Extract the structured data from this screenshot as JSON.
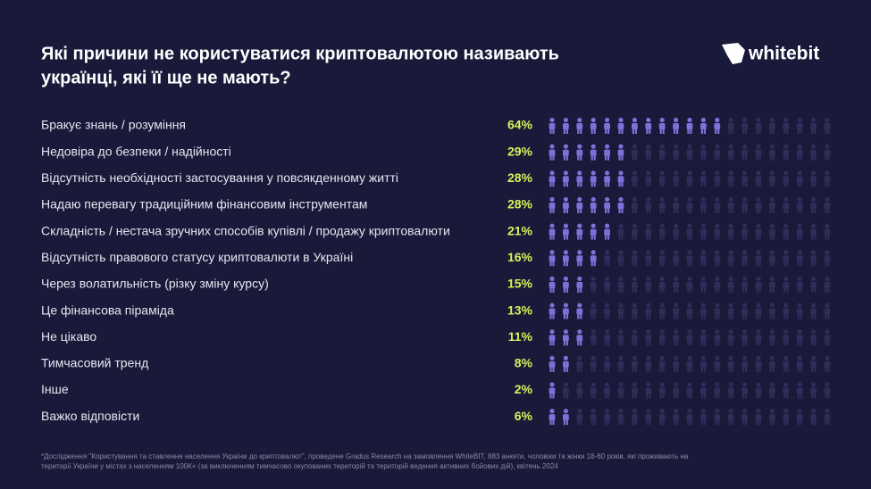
{
  "chart_data": {
    "type": "pictogram",
    "title_lines": [
      "Які причини не користуватися криптовалютою називають",
      "українці, які її ще не мають?"
    ],
    "logo": "whitebit",
    "categories": [
      "Бракує знань / розуміння",
      "Недовіра до безпеки / надійності",
      "Відсутність необхідності застосування у повсякденному житті",
      "Надаю перевагу традиційним фінансовим інструментам",
      "Складність / нестача зручних способів купівлі / продажу криптовалюти",
      "Відсутність правового статусу криптовалюти в Україні",
      "Через волатильність (різку зміну курсу)",
      "Це фінансова піраміда",
      "Не цікаво",
      "Тимчасовий тренд",
      "Інше",
      "Важко відповісти"
    ],
    "values": [
      64,
      29,
      28,
      28,
      21,
      16,
      15,
      13,
      11,
      8,
      2,
      6
    ],
    "value_labels": [
      "64%",
      "29%",
      "28%",
      "28%",
      "21%",
      "16%",
      "15%",
      "13%",
      "11%",
      "8%",
      "2%",
      "6%"
    ],
    "color": "#7d70d6",
    "empty_color": "#2f2d58",
    "label_color": "#d9f25a",
    "footnote_lines": [
      "*Дослідження \"Користування та ставлення населення України до криптовалют\", проведене Gradus Research на замовлення WhiteBIT, 883 анкети, чоловіки та жінки 18-60 років, які проживають на",
      "території України у містах з населенням 100К+ (за виключенням тимчасово окупованих територій та територій ведення активних бойових дій), квітень 2024"
    ]
  }
}
